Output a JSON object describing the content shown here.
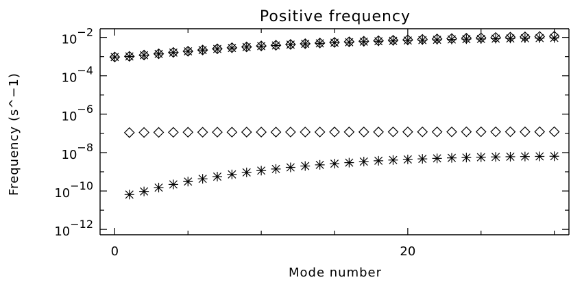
{
  "chart_data": {
    "type": "scatter",
    "title": "Positive frequency",
    "xlabel": "Mode number",
    "ylabel": "Frequency (s^−1)",
    "xlim": [
      -1,
      31
    ],
    "ylim": [
      1e-12,
      0.01
    ],
    "x_scale": "linear",
    "y_scale": "log",
    "x_ticks": [
      {
        "value": 0,
        "label": "0"
      },
      {
        "value": 20,
        "label": "20"
      }
    ],
    "y_ticks": [
      {
        "value": 0.01,
        "base": "10",
        "exp": "−2"
      },
      {
        "value": 0.0001,
        "base": "10",
        "exp": "−4"
      },
      {
        "value": 1e-06,
        "base": "10",
        "exp": "−6"
      },
      {
        "value": 1e-08,
        "base": "10",
        "exp": "−8"
      },
      {
        "value": 1e-10,
        "base": "10",
        "exp": "−10"
      },
      {
        "value": 1e-12,
        "base": "10",
        "exp": "−12"
      }
    ],
    "grid": false,
    "legend": "none",
    "series": [
      {
        "marker": "asterisk",
        "x": [
          0,
          1,
          2,
          3,
          4,
          5,
          6,
          7,
          8,
          9,
          10,
          11,
          12,
          13,
          14,
          15,
          16,
          17,
          18,
          19,
          20,
          21,
          22,
          23,
          24,
          25,
          26,
          27,
          28,
          29,
          30
        ],
        "y": [
          0.00095,
          0.00102,
          0.00118,
          0.00138,
          0.00162,
          0.00188,
          0.00218,
          0.0025,
          0.0028,
          0.00315,
          0.0035,
          0.0038,
          0.0042,
          0.0046,
          0.0049,
          0.0053,
          0.0056,
          0.006,
          0.0063,
          0.0066,
          0.0069,
          0.0072,
          0.0075,
          0.0078,
          0.0081,
          0.0083,
          0.0086,
          0.0088,
          0.009,
          0.0092,
          0.0094
        ]
      },
      {
        "marker": "diamond",
        "x": [
          0,
          1,
          2,
          3,
          4,
          5,
          6,
          7,
          8,
          9,
          10,
          11,
          12,
          13,
          14,
          15,
          16,
          17,
          18,
          19,
          20,
          21,
          22,
          23,
          24,
          25,
          26,
          27,
          28,
          29,
          30
        ],
        "y": [
          0.00095,
          0.00103,
          0.0012,
          0.0014,
          0.00165,
          0.0019,
          0.0022,
          0.00255,
          0.0029,
          0.0032,
          0.0036,
          0.0039,
          0.0043,
          0.0047,
          0.0051,
          0.0055,
          0.0059,
          0.0063,
          0.0067,
          0.0071,
          0.0075,
          0.0079,
          0.0083,
          0.0087,
          0.0091,
          0.0095,
          0.0099,
          0.0103,
          0.0107,
          0.0111,
          0.0115
        ]
      },
      {
        "marker": "diamond",
        "x": [
          1,
          2,
          3,
          4,
          5,
          6,
          7,
          8,
          9,
          10,
          11,
          12,
          13,
          14,
          15,
          16,
          17,
          18,
          19,
          20,
          21,
          22,
          23,
          24,
          25,
          26,
          27,
          28,
          29,
          30
        ],
        "y": [
          1.1e-07,
          1.12e-07,
          1.13e-07,
          1.14e-07,
          1.15e-07,
          1.15e-07,
          1.16e-07,
          1.16e-07,
          1.17e-07,
          1.17e-07,
          1.17e-07,
          1.18e-07,
          1.18e-07,
          1.18e-07,
          1.19e-07,
          1.19e-07,
          1.19e-07,
          1.19e-07,
          1.2e-07,
          1.2e-07,
          1.2e-07,
          1.2e-07,
          1.2e-07,
          1.21e-07,
          1.21e-07,
          1.21e-07,
          1.21e-07,
          1.21e-07,
          1.22e-07,
          1.22e-07
        ]
      },
      {
        "marker": "asterisk",
        "x": [
          1,
          2,
          3,
          4,
          5,
          6,
          7,
          8,
          9,
          10,
          11,
          12,
          13,
          14,
          15,
          16,
          17,
          18,
          19,
          20,
          21,
          22,
          23,
          24,
          25,
          26,
          27,
          28,
          29,
          30
        ],
        "y": [
          6.5e-11,
          9.5e-11,
          1.5e-10,
          2.2e-10,
          3.1e-10,
          4.3e-10,
          5.6e-10,
          7.3e-10,
          9.3e-10,
          1.15e-09,
          1.4e-09,
          1.7e-09,
          2e-09,
          2.3e-09,
          2.65e-09,
          3e-09,
          3.4e-09,
          3.75e-09,
          4.1e-09,
          4.4e-09,
          4.7e-09,
          5e-09,
          5.3e-09,
          5.5e-09,
          5.75e-09,
          5.95e-09,
          6.1e-09,
          6.25e-09,
          6.35e-09,
          6.45e-09
        ]
      }
    ]
  }
}
